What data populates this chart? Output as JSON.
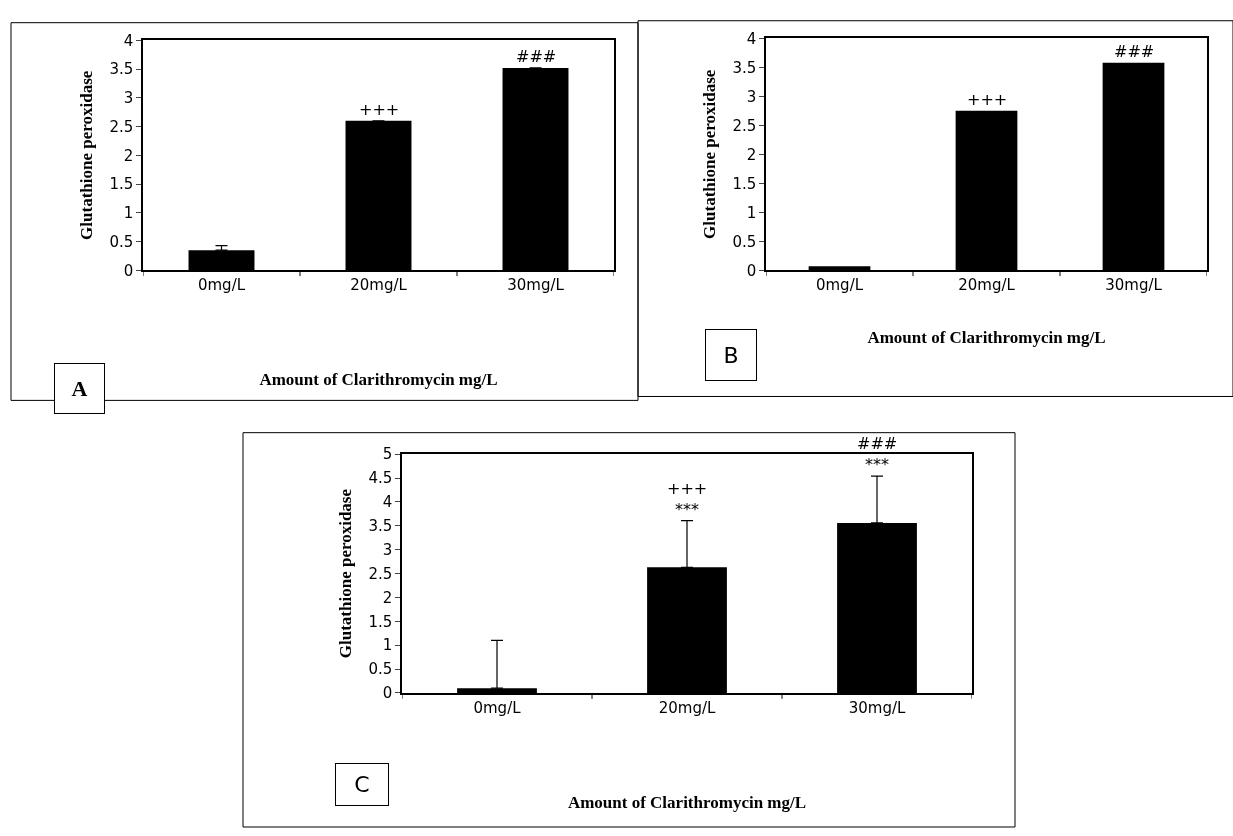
{
  "chart_data": [
    {
      "type": "bar",
      "xlabel": "Amount of Clarithromycin mg/L",
      "ylabel": "Glutathione peroxidase",
      "categories": [
        "0mg/L",
        "20mg/L",
        "30mg/L"
      ],
      "values": [
        0.35,
        2.6,
        3.52
      ],
      "color": "#000000",
      "errors": [
        [
          0.35,
          0.43
        ],
        null,
        null
      ],
      "ylim": [
        0,
        4
      ],
      "yticks": [
        0,
        0.5,
        1,
        1.5,
        2,
        2.5,
        3,
        3.5,
        4
      ],
      "annotations": [
        {
          "text": "+++",
          "x": "20mg/L",
          "y": 2.6
        },
        {
          "text": "###",
          "x": "30mg/L",
          "y": 3.52
        },
        "A"
      ]
    },
    {
      "type": "bar",
      "xlabel": "Amount of Clarithromycin mg/L",
      "ylabel": "Glutathione peroxidase",
      "categories": [
        "0mg/L",
        "20mg/L",
        "30mg/L"
      ],
      "values": [
        0.07,
        2.75,
        3.58
      ],
      "color": "#000000",
      "ylim": [
        0,
        4
      ],
      "yticks": [
        0,
        0.5,
        1,
        1.5,
        2,
        2.5,
        3,
        3.5,
        4
      ],
      "annotations": [
        {
          "text": "+++",
          "x": "20mg/L",
          "y": 2.75
        },
        {
          "text": "###",
          "x": "30mg/L",
          "y": 3.58
        },
        "B"
      ]
    },
    {
      "type": "bar",
      "xlabel": "Amount of Clarithromycin mg/L",
      "ylabel": "Glutathione peroxidase",
      "categories": [
        "0mg/L",
        "20mg/L",
        "30mg/L"
      ],
      "values": [
        0.1,
        2.63,
        3.56
      ],
      "color": "#000000",
      "errors": [
        [
          0.1,
          1.1
        ],
        [
          2.63,
          3.61
        ],
        [
          3.56,
          4.54
        ]
      ],
      "ylim": [
        0,
        5
      ],
      "yticks": [
        0,
        0.5,
        1,
        1.5,
        2,
        2.5,
        3,
        3.5,
        4,
        4.5,
        5
      ],
      "annotations": [
        {
          "text": "+++\n***",
          "x": "20mg/L",
          "y": 3.61
        },
        {
          "text": "###\n***",
          "x": "30mg/L",
          "y": 4.54
        },
        "C"
      ]
    }
  ]
}
